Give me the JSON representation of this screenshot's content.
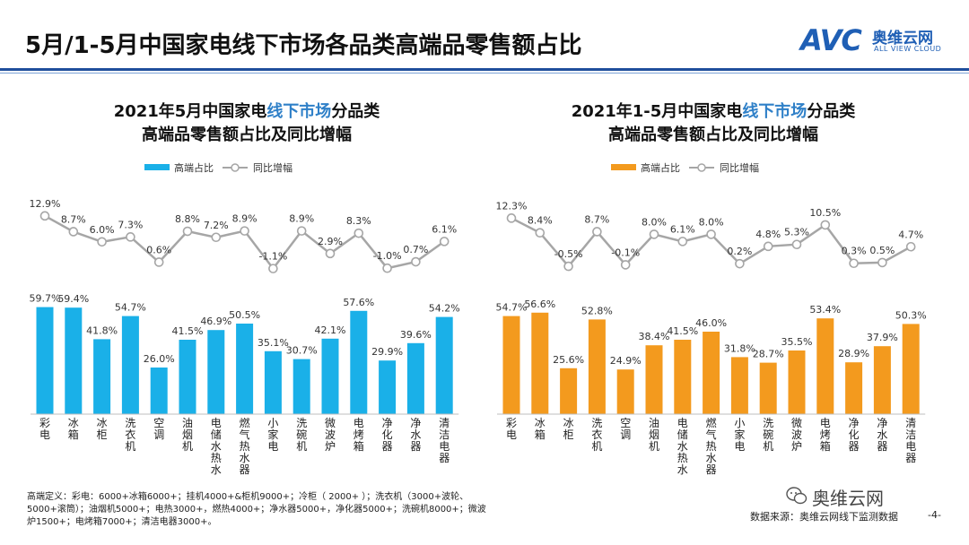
{
  "page": {
    "title": "5月/1-5月中国家电线下市场各品类高端品零售额占比",
    "logo_mark": "AVC",
    "logo_cn": "奥维云网",
    "logo_en": "ALL VIEW CLOUD",
    "footnote": "高端定义：彩电：6000+冰箱6000+；挂机4000+&柜机9000+；冷柜（ 2000+ ）；洗衣机（3000+波轮、5000+滚筒）；油烟机5000+；电热3000+，燃热4000+；净水器5000+，净化器5000+；洗碗机8000+；微波炉1500+；电烤箱7000+；清洁电器3000+。",
    "source": "数据来源：奥维云网线下监测数据",
    "page_number": "-4-",
    "wechat_name": "奥维云网"
  },
  "chart_data": [
    {
      "type": "bar",
      "title_line1_a": "2021年5月中国家电",
      "title_line1_hl": "线下市场",
      "title_line1_b": "分品类",
      "title_line2": "高端品零售额占比及同比增幅",
      "bar_color": "#1ab0e8",
      "line_color": "#a6a6a6",
      "series": [
        {
          "name": "高端占比",
          "type": "bar",
          "values": [
            59.7,
            59.4,
            41.8,
            54.7,
            26.0,
            41.5,
            46.9,
            50.5,
            35.1,
            30.7,
            42.1,
            57.6,
            29.9,
            39.6,
            54.2
          ]
        },
        {
          "name": "同比增幅",
          "type": "line",
          "values": [
            12.9,
            8.7,
            6.0,
            7.3,
            0.6,
            8.8,
            7.2,
            8.9,
            -1.1,
            8.9,
            2.9,
            8.3,
            -1.0,
            0.7,
            6.1
          ]
        }
      ],
      "bar_labels": [
        "59.7%",
        "59.4%",
        "41.8%",
        "54.7%",
        "26.0%",
        "41.5%",
        "46.9%",
        "50.5%",
        "35.1%",
        "30.7%",
        "42.1%",
        "57.6%",
        "29.9%",
        "39.6%",
        "54.2%"
      ],
      "line_labels": [
        "12.9%",
        "8.7%",
        "6.0%",
        "7.3%",
        "0.6%",
        "8.8%",
        "7.2%",
        "8.9%",
        "-1.1%",
        "8.9%",
        "2.9%",
        "8.3%",
        "-1.0%",
        "0.7%",
        "6.1%"
      ],
      "categories": [
        "彩电",
        "冰箱",
        "冰柜",
        "洗衣机",
        "空调",
        "油烟机",
        "电储水热水器",
        "燃气热水器",
        "小家电",
        "洗碗机",
        "微波炉",
        "电烤箱",
        "净化器",
        "净水器",
        "清洁电器"
      ],
      "legend_placement": "top-left",
      "grid": false
    },
    {
      "type": "bar",
      "title_line1_a": "2021年1-5月中国家电",
      "title_line1_hl": "线下市场",
      "title_line1_b": "分品类",
      "title_line2": "高端品零售额占比及同比增幅",
      "bar_color": "#f39a1e",
      "line_color": "#a6a6a6",
      "series": [
        {
          "name": "高端占比",
          "type": "bar",
          "values": [
            54.7,
            56.6,
            25.6,
            52.8,
            24.9,
            38.4,
            41.5,
            46.0,
            31.8,
            28.7,
            35.5,
            53.4,
            28.9,
            37.9,
            50.3
          ]
        },
        {
          "name": "同比增幅",
          "type": "line",
          "values": [
            12.3,
            8.4,
            -0.5,
            8.7,
            -0.1,
            8.0,
            6.1,
            8.0,
            0.2,
            4.8,
            5.3,
            10.5,
            0.3,
            0.5,
            4.7
          ]
        }
      ],
      "bar_labels": [
        "54.7%",
        "56.6%",
        "25.6%",
        "52.8%",
        "24.9%",
        "38.4%",
        "41.5%",
        "46.0%",
        "31.8%",
        "28.7%",
        "35.5%",
        "53.4%",
        "28.9%",
        "37.9%",
        "50.3%"
      ],
      "line_labels": [
        "12.3%",
        "8.4%",
        "-0.5%",
        "8.7%",
        "-0.1%",
        "8.0%",
        "6.1%",
        "8.0%",
        "0.2%",
        "4.8%",
        "5.3%",
        "10.5%",
        "0.3%",
        "0.5%",
        "4.7%"
      ],
      "categories": [
        "彩电",
        "冰箱",
        "冰柜",
        "洗衣机",
        "空调",
        "油烟机",
        "电储水热水器",
        "燃气热水器",
        "小家电",
        "洗碗机",
        "微波炉",
        "电烤箱",
        "净化器",
        "净水器",
        "清洁电器"
      ],
      "legend_placement": "top-left",
      "grid": false
    }
  ]
}
